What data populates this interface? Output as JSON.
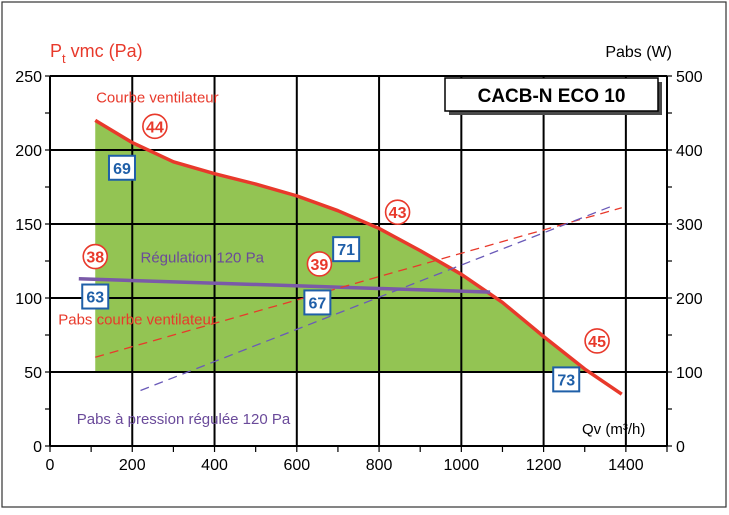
{
  "chart_data": {
    "type": "line",
    "title": "CACB-N ECO 10",
    "ylabel_left": "P",
    "ylabel_left_sub": "t",
    "ylabel_left_rest": " vmc (Pa)",
    "ylabel_right": "Pabs (W)",
    "xlabel": "Qv (m³/h)",
    "xlim": [
      0,
      1500
    ],
    "ylim_left": [
      0,
      250
    ],
    "ylim_right": [
      0,
      500
    ],
    "x_ticks": [
      0,
      200,
      400,
      600,
      800,
      1000,
      1200,
      1400
    ],
    "y_ticks_left": [
      0,
      50,
      100,
      150,
      200,
      250
    ],
    "y_ticks_right": [
      0,
      100,
      200,
      300,
      400,
      500
    ],
    "grid": true,
    "colors": {
      "fan_curve": "#e8392b",
      "regulation": "#7a5aa8",
      "pabs_fan": "#e8392b",
      "pabs_regulated": "#6a5ab8",
      "fill": "#93c453",
      "marker_red": "#e8392b",
      "marker_blue": "#1f5fa8"
    },
    "series": [
      {
        "name": "Courbe ventilateur",
        "axis": "left",
        "style": "solid",
        "x": [
          110,
          200,
          300,
          400,
          500,
          600,
          700,
          800,
          900,
          1000,
          1100,
          1200,
          1300,
          1390
        ],
        "y": [
          220,
          205,
          192,
          184,
          177,
          169,
          159,
          147,
          132,
          116,
          97,
          74,
          52,
          35
        ]
      },
      {
        "name": "Régulation 120 Pa",
        "axis": "left",
        "style": "solid",
        "x": [
          70,
          1070
        ],
        "y": [
          113,
          104
        ]
      },
      {
        "name": "Pabs courbe ventilateur",
        "axis": "right",
        "style": "dashed",
        "x": [
          110,
          1390
        ],
        "y": [
          120,
          322
        ]
      },
      {
        "name": "Pabs à pression régulée 120 Pa",
        "axis": "right",
        "style": "dashed",
        "x": [
          220,
          1370
        ],
        "y": [
          75,
          325
        ]
      }
    ],
    "regulated_area": {
      "x_start": 110,
      "regulation_y": [
        113,
        104
      ]
    },
    "markers": [
      {
        "label": "44",
        "shape": "circle",
        "x": 255,
        "y": 216
      },
      {
        "label": "69",
        "shape": "box",
        "x": 175,
        "y": 188
      },
      {
        "label": "43",
        "shape": "circle",
        "x": 845,
        "y": 158
      },
      {
        "label": "71",
        "shape": "box",
        "x": 720,
        "y": 133
      },
      {
        "label": "38",
        "shape": "circle",
        "x": 110,
        "y": 128
      },
      {
        "label": "39",
        "shape": "circle",
        "x": 655,
        "y": 123
      },
      {
        "label": "63",
        "shape": "box",
        "x": 110,
        "y": 101
      },
      {
        "label": "67",
        "shape": "box",
        "x": 650,
        "y": 97
      },
      {
        "label": "45",
        "shape": "circle",
        "x": 1330,
        "y": 71
      },
      {
        "label": "73",
        "shape": "box",
        "x": 1255,
        "y": 45
      }
    ],
    "annotations": [
      {
        "text": "Courbe ventilateur",
        "x": 112,
        "y": 232,
        "color": "#e8392b"
      },
      {
        "text": "Régulation 120 Pa",
        "x": 220,
        "y": 124,
        "color": "#6a4a9a"
      },
      {
        "text": "Pabs courbe ventilateur",
        "x": 20,
        "y": 82,
        "color": "#e8392b"
      },
      {
        "text": "Pabs à pression régulée 120 Pa",
        "x": 65,
        "y": 15,
        "color": "#6a4a9a"
      }
    ]
  }
}
